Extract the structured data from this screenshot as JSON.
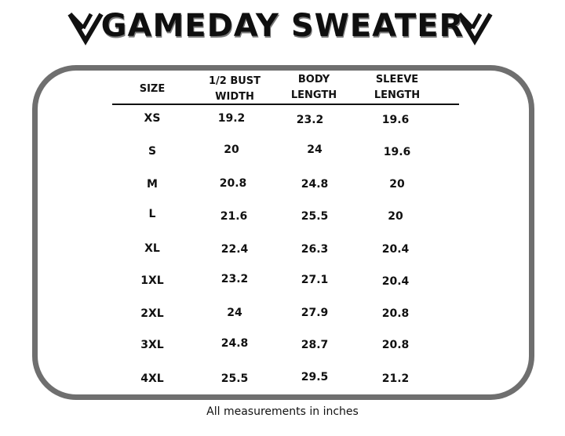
{
  "title": "GAMEDAY SWEATER",
  "logo_icon": "mv-chevron-logo",
  "headers": {
    "size": "SIZE",
    "bust_line1": "1/2 BUST",
    "bust_line2": "WIDTH",
    "body_line1": "BODY",
    "body_line2": "LENGTH",
    "sleeve_line1": "SLEEVE",
    "sleeve_line2": "LENGTH"
  },
  "rows": [
    {
      "size": "XS",
      "bust": "19.2",
      "body": "23.2",
      "sleeve": "19.6"
    },
    {
      "size": "S",
      "bust": "20",
      "body": "24",
      "sleeve": "19.6"
    },
    {
      "size": "M",
      "bust": "20.8",
      "body": "24.8",
      "sleeve": "20"
    },
    {
      "size": "L",
      "bust": "21.6",
      "body": "25.5",
      "sleeve": "20"
    },
    {
      "size": "XL",
      "bust": "22.4",
      "body": "26.3",
      "sleeve": "20.4"
    },
    {
      "size": "1XL",
      "bust": "23.2",
      "body": "27.1",
      "sleeve": "20.4"
    },
    {
      "size": "2XL",
      "bust": "24",
      "body": "27.9",
      "sleeve": "20.8"
    },
    {
      "size": "3XL",
      "bust": "24.8",
      "body": "28.7",
      "sleeve": "20.8"
    },
    {
      "size": "4XL",
      "bust": "25.5",
      "body": "29.5",
      "sleeve": "21.2"
    }
  ],
  "footer": "All measurements in inches",
  "colors": {
    "frame": "#6f6f6f",
    "text": "#111111"
  }
}
